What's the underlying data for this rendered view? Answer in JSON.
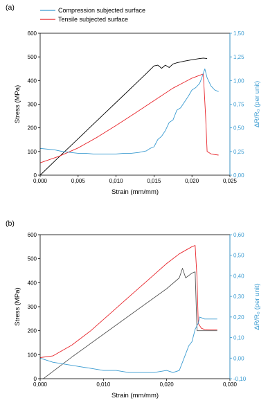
{
  "chart_data": [
    {
      "type": "line",
      "panel_label": "(a)",
      "xlabel": "Strain (mm/mm)",
      "ylabel": "Stress (MPa)",
      "y2label": "ΔR/R₀ (per unit)",
      "xlim": [
        0,
        0.025
      ],
      "ylim": [
        0,
        600
      ],
      "y2lim": [
        -0.25,
        1.5
      ],
      "xticks": [
        "0,000",
        "0,005",
        "0,010",
        "0,015",
        "0,020",
        "0,025"
      ],
      "yticks": [
        "0",
        "100",
        "200",
        "300",
        "400",
        "500",
        "600"
      ],
      "y2ticks": [
        "0,00",
        "0,25",
        "0,50",
        "0,75",
        "1,00",
        "1,25",
        "1,50"
      ],
      "legend": [
        "Compression subjected surface",
        "Tensile subjected surface"
      ],
      "legend_position": "above-top-left",
      "series": [
        {
          "color": "#000000",
          "axis": "left",
          "x": [
            0,
            0.002,
            0.005,
            0.008,
            0.011,
            0.014,
            0.015,
            0.0155,
            0.016,
            0.0165,
            0.017,
            0.0175,
            0.018,
            0.019,
            0.02,
            0.021,
            0.0215,
            0.022
          ],
          "y": [
            0,
            62,
            154,
            246,
            338,
            430,
            462,
            465,
            452,
            465,
            455,
            470,
            475,
            482,
            488,
            493,
            495,
            493
          ]
        },
        {
          "name": "Tensile subjected surface",
          "color": "#e8242a",
          "axis": "left",
          "x": [
            0,
            0.0025,
            0.005,
            0.0075,
            0.01,
            0.0125,
            0.015,
            0.0175,
            0.02,
            0.0215,
            0.0218,
            0.022,
            0.0225,
            0.023,
            0.0235
          ],
          "y": [
            52,
            80,
            115,
            160,
            210,
            262,
            315,
            368,
            410,
            428,
            250,
            100,
            90,
            87,
            85
          ]
        },
        {
          "name": "Compression subjected surface",
          "color": "#3a9bd1",
          "axis": "right",
          "x": [
            0,
            0.001,
            0.002,
            0.003,
            0.004,
            0.005,
            0.006,
            0.007,
            0.008,
            0.009,
            0.01,
            0.011,
            0.012,
            0.013,
            0.014,
            0.0145,
            0.015,
            0.0155,
            0.016,
            0.0165,
            0.017,
            0.0175,
            0.018,
            0.0185,
            0.019,
            0.0195,
            0.02,
            0.0205,
            0.021,
            0.0213,
            0.0217,
            0.022,
            0.0225,
            0.023,
            0.0235
          ],
          "y": [
            0.08,
            0.07,
            0.06,
            0.04,
            0.03,
            0.02,
            0.02,
            0.01,
            0.01,
            0.01,
            0.01,
            0.02,
            0.02,
            0.03,
            0.05,
            0.08,
            0.1,
            0.19,
            0.23,
            0.3,
            0.4,
            0.43,
            0.55,
            0.58,
            0.65,
            0.72,
            0.8,
            0.83,
            0.88,
            0.95,
            1.06,
            0.95,
            0.85,
            0.8,
            0.78
          ]
        }
      ]
    },
    {
      "type": "line",
      "panel_label": "(b)",
      "xlabel": "Strain (mm/mm)",
      "ylabel": "Stress (MPa)",
      "y2label": "ΔR/R₀ (per unit)",
      "xlim": [
        0,
        0.03
      ],
      "ylim": [
        0,
        600
      ],
      "y2lim": [
        -0.1,
        0.6
      ],
      "xticks": [
        "0,000",
        "0,010",
        "0,020",
        "0,030"
      ],
      "yticks": [
        "0",
        "100",
        "200",
        "300",
        "400",
        "500",
        "600"
      ],
      "y2ticks": [
        "-0,10",
        "0,00",
        "0,10",
        "0,20",
        "0,30",
        "0,40",
        "0,50",
        "0,60"
      ],
      "series": [
        {
          "color": "#555555",
          "axis": "left",
          "x": [
            0.0005,
            0.005,
            0.01,
            0.015,
            0.02,
            0.022,
            0.0225,
            0.023,
            0.024,
            0.0245,
            0.0248,
            0.025,
            0.026,
            0.027,
            0.028
          ],
          "y": [
            0,
            90,
            185,
            280,
            375,
            420,
            460,
            420,
            440,
            445,
            200,
            200,
            200,
            200,
            200
          ]
        },
        {
          "color": "#e8242a",
          "axis": "left",
          "x": [
            0,
            0.002,
            0.005,
            0.008,
            0.011,
            0.014,
            0.017,
            0.02,
            0.022,
            0.024,
            0.0245,
            0.0248,
            0.025,
            0.0255,
            0.026,
            0.027,
            0.028
          ],
          "y": [
            88,
            95,
            140,
            200,
            270,
            340,
            410,
            480,
            520,
            550,
            555,
            420,
            230,
            210,
            205,
            203,
            203
          ]
        },
        {
          "color": "#3a9bd1",
          "axis": "right",
          "x": [
            0,
            0.002,
            0.004,
            0.006,
            0.008,
            0.01,
            0.012,
            0.014,
            0.016,
            0.018,
            0.02,
            0.021,
            0.022,
            0.023,
            0.0235,
            0.024,
            0.0245,
            0.025,
            0.0252,
            0.026,
            0.027,
            0.028
          ],
          "y": [
            0.0,
            -0.02,
            -0.03,
            -0.04,
            -0.05,
            -0.06,
            -0.06,
            -0.07,
            -0.07,
            -0.07,
            -0.06,
            -0.07,
            -0.06,
            0.02,
            0.06,
            0.08,
            0.14,
            0.17,
            0.2,
            0.19,
            0.19,
            0.19
          ]
        }
      ]
    }
  ]
}
